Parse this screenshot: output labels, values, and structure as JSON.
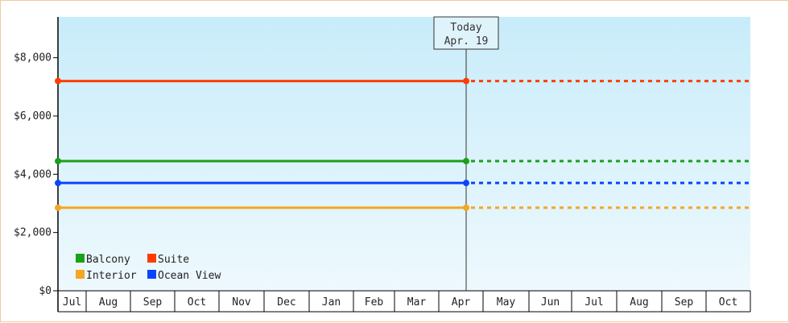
{
  "chart_data": {
    "type": "line",
    "title": "",
    "xlabel": "",
    "ylabel": "",
    "x_categories": [
      "Jul",
      "Aug",
      "Sep",
      "Oct",
      "Nov",
      "Dec",
      "Jan",
      "Feb",
      "Mar",
      "Apr",
      "May",
      "Jun",
      "Jul",
      "Aug",
      "Sep",
      "Oct"
    ],
    "y_ticks": [
      "$0",
      "$2,000",
      "$4,000",
      "$6,000",
      "$8,000"
    ],
    "y_tick_values": [
      0,
      2000,
      4000,
      6000,
      8000
    ],
    "ylim": [
      0,
      9400
    ],
    "grid": false,
    "legend_position": "bottom-left",
    "today_marker": {
      "line1": "Today",
      "line2": "Apr. 19",
      "x_month_index": 9
    },
    "series": [
      {
        "name": "Balcony",
        "color": "#1aa01a",
        "value": 4450,
        "start_month_index": 0,
        "end_month_index": 9
      },
      {
        "name": "Suite",
        "color": "#ff3d00",
        "value": 7200,
        "start_month_index": 0,
        "end_month_index": 9
      },
      {
        "name": "Interior",
        "color": "#f5a623",
        "value": 2850,
        "start_month_index": 0,
        "end_month_index": 9
      },
      {
        "name": "Ocean View",
        "color": "#0a44ff",
        "value": 3700,
        "start_month_index": 0,
        "end_month_index": 9
      }
    ],
    "colors": {
      "plot_bg_top": "#c8ecfa",
      "plot_bg_bottom": "#eef9fd",
      "frame_border": "#f0c9a0"
    }
  }
}
